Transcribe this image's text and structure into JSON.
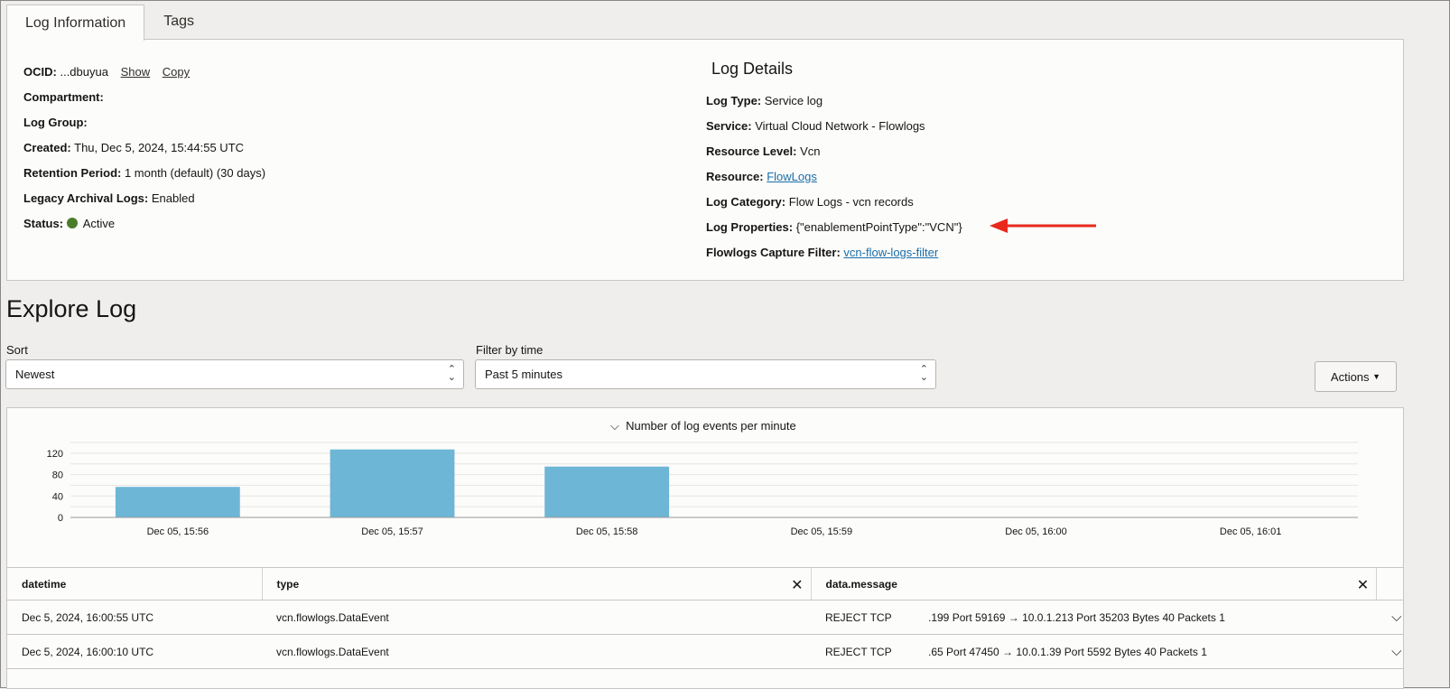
{
  "tabs": [
    {
      "label": "Log Information",
      "active": true
    },
    {
      "label": "Tags",
      "active": false
    }
  ],
  "info": {
    "ocid_label": "OCID:",
    "ocid_value": "...dbuyua",
    "show": "Show",
    "copy": "Copy",
    "compartment_label": "Compartment:",
    "log_group_label": "Log Group:",
    "created_label": "Created:",
    "created_value": "Thu, Dec 5, 2024, 15:44:55 UTC",
    "retention_label": "Retention Period:",
    "retention_value": "1 month (default) (30 days)",
    "legacy_label": "Legacy Archival Logs:",
    "legacy_value": "Enabled",
    "status_label": "Status:",
    "status_value": "Active",
    "status_color": "#4a7d2a"
  },
  "details": {
    "title": "Log Details",
    "log_type_label": "Log Type:",
    "log_type": "Service log",
    "service_label": "Service:",
    "service": "Virtual Cloud Network - Flowlogs",
    "resource_level_label": "Resource Level:",
    "resource_level": "Vcn",
    "resource_label": "Resource:",
    "resource": "FlowLogs",
    "category_label": "Log Category:",
    "category": "Flow Logs - vcn records",
    "properties_label": "Log Properties:",
    "properties": "{\"enablementPointType\":\"VCN\"}",
    "filter_label": "Flowlogs Capture Filter:",
    "filter": "vcn-flow-logs-filter",
    "annotation_arrow_color": "#e8291c"
  },
  "explore": {
    "title": "Explore Log",
    "sort_label": "Sort",
    "sort_value": "Newest",
    "time_label": "Filter by time",
    "time_value": "Past 5 minutes",
    "actions": "Actions"
  },
  "chart_data": {
    "type": "bar",
    "title": "Number of log events per minute",
    "categories": [
      "Dec 05, 15:56",
      "Dec 05, 15:57",
      "Dec 05, 15:58",
      "Dec 05, 15:59",
      "Dec 05, 16:00",
      "Dec 05, 16:01"
    ],
    "values": [
      57,
      127,
      95,
      0,
      0,
      0
    ],
    "ylim": [
      0,
      140
    ],
    "yticks": [
      0,
      40,
      80,
      120
    ],
    "grid": true,
    "bar_color": "#6db6d6"
  },
  "table": {
    "columns": [
      "datetime",
      "type",
      "data.message"
    ],
    "rows": [
      {
        "datetime": "Dec 5, 2024, 16:00:55 UTC",
        "type": "vcn.flowlogs.DataEvent",
        "action": "REJECT TCP",
        "message": ".199 Port 59169 → 10.0.1.213 Port 35203 Bytes 40 Packets 1"
      },
      {
        "datetime": "Dec 5, 2024, 16:00:10 UTC",
        "type": "vcn.flowlogs.DataEvent",
        "action": "REJECT TCP",
        "message": ".65 Port 47450 → 10.0.1.39 Port 5592 Bytes 40 Packets 1"
      }
    ]
  }
}
